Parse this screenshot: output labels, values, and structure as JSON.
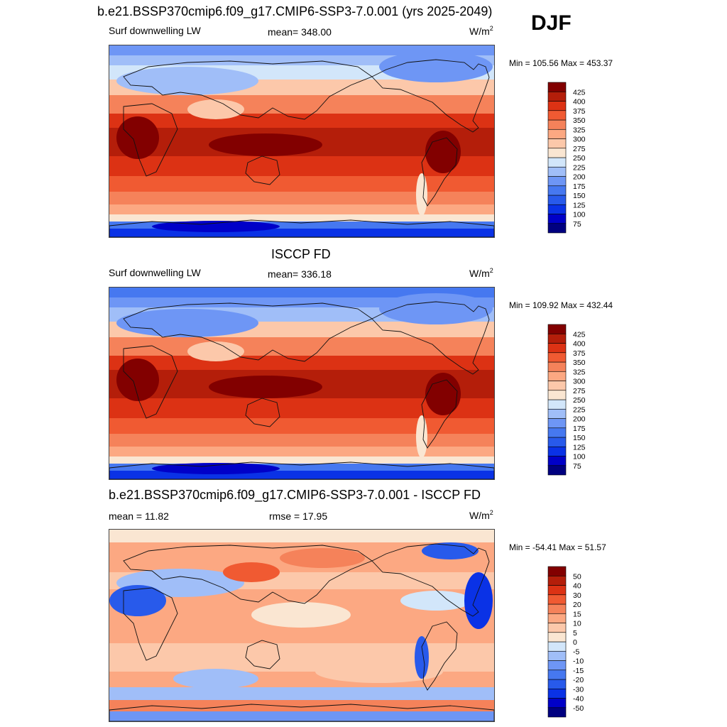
{
  "season": "DJF",
  "panels": [
    {
      "id": "model",
      "title": "b.e21.BSSP370cmip6.f09_g17.CMIP6-SSP3-7.0.001 (yrs 2025-2049)",
      "left_label": "Surf downwelling LW",
      "center_label": "mean= 348.00",
      "unit_base": "W/m",
      "unit_exp": "2",
      "minmax": "Min = 105.56 Max = 453.37",
      "stats": {
        "mean": 348.0,
        "min": 105.56,
        "max": 453.37
      }
    },
    {
      "id": "obs",
      "title": "ISCCP FD",
      "left_label": "Surf downwelling LW",
      "center_label": "mean= 336.18",
      "unit_base": "W/m",
      "unit_exp": "2",
      "minmax": "Min = 109.92 Max = 432.44",
      "stats": {
        "mean": 336.18,
        "min": 109.92,
        "max": 432.44
      }
    },
    {
      "id": "diff",
      "title": "b.e21.BSSP370cmip6.f09_g17.CMIP6-SSP3-7.0.001 - ISCCP FD",
      "left_label": "mean =  11.82",
      "center_label": "rmse =  17.95",
      "unit_base": "W/m",
      "unit_exp": "2",
      "minmax": "Min = -54.41 Max =  51.57",
      "stats": {
        "mean": 11.82,
        "rmse": 17.95,
        "min": -54.41,
        "max": 51.57
      }
    }
  ],
  "chart_data": [
    {
      "type": "heatmap",
      "title": "b.e21.BSSP370cmip6.f09_g17.CMIP6-SSP3-7.0.001 (yrs 2025-2049)",
      "variable": "Surf downwelling LW",
      "units": "W/m2",
      "mean": 348.0,
      "min": 105.56,
      "max": 453.37,
      "colorbar_levels": [
        75,
        100,
        125,
        150,
        175,
        200,
        225,
        250,
        275,
        300,
        325,
        350,
        375,
        400,
        425
      ],
      "colorbar_colors": [
        "#000080",
        "#0000c8",
        "#0a32e6",
        "#285aeb",
        "#4678f0",
        "#6e96f5",
        "#a0bef8",
        "#d2e6fa",
        "#fae6d2",
        "#fcc8aa",
        "#fca882",
        "#f5825a",
        "#f05a32",
        "#dc3214",
        "#b41e0a",
        "#820000"
      ]
    },
    {
      "type": "heatmap",
      "title": "ISCCP FD",
      "variable": "Surf downwelling LW",
      "units": "W/m2",
      "mean": 336.18,
      "min": 109.92,
      "max": 432.44,
      "colorbar_levels": [
        75,
        100,
        125,
        150,
        175,
        200,
        225,
        250,
        275,
        300,
        325,
        350,
        375,
        400,
        425
      ],
      "colorbar_colors": [
        "#000080",
        "#0000c8",
        "#0a32e6",
        "#285aeb",
        "#4678f0",
        "#6e96f5",
        "#a0bef8",
        "#d2e6fa",
        "#fae6d2",
        "#fcc8aa",
        "#fca882",
        "#f5825a",
        "#f05a32",
        "#dc3214",
        "#b41e0a",
        "#820000"
      ]
    },
    {
      "type": "heatmap",
      "title": "b.e21.BSSP370cmip6.f09_g17.CMIP6-SSP3-7.0.001 - ISCCP FD",
      "units": "W/m2",
      "mean": 11.82,
      "rmse": 17.95,
      "min": -54.41,
      "max": 51.57,
      "colorbar_levels": [
        -50,
        -40,
        -30,
        -20,
        -15,
        -10,
        -5,
        0,
        5,
        10,
        15,
        20,
        30,
        40,
        50
      ],
      "colorbar_colors": [
        "#000080",
        "#0000c8",
        "#0a32e6",
        "#285aeb",
        "#4678f0",
        "#6e96f5",
        "#a0bef8",
        "#d2e6fa",
        "#fae6d2",
        "#fcc8aa",
        "#fca882",
        "#f5825a",
        "#f05a32",
        "#dc3214",
        "#b41e0a",
        "#820000"
      ]
    }
  ]
}
